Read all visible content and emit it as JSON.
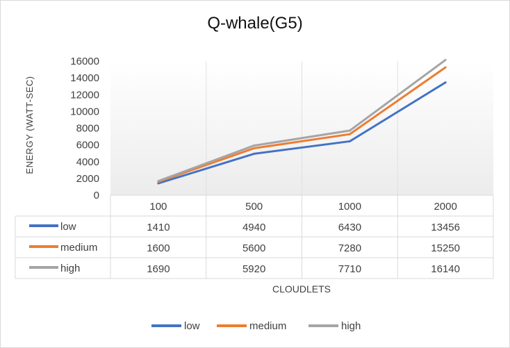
{
  "chart_data": {
    "type": "line",
    "title": "Q-whale(G5)",
    "xlabel": "CLOUDLETS",
    "ylabel": "ENERGY (WATT-SEC)",
    "categories": [
      "100",
      "500",
      "1000",
      "2000"
    ],
    "ylim": [
      0,
      16000
    ],
    "yticks": [
      "0",
      "2000",
      "4000",
      "6000",
      "8000",
      "10000",
      "12000",
      "14000",
      "16000"
    ],
    "grid": false,
    "legend_position": "bottom",
    "data_table": true,
    "series": [
      {
        "name": "low",
        "color": "#4472C4",
        "values": [
          1410,
          4940,
          6430,
          13456
        ]
      },
      {
        "name": "medium",
        "color": "#ED7D31",
        "values": [
          1600,
          5600,
          7280,
          15250
        ]
      },
      {
        "name": "high",
        "color": "#A5A5A5",
        "values": [
          1690,
          5920,
          7710,
          16140
        ]
      }
    ]
  }
}
